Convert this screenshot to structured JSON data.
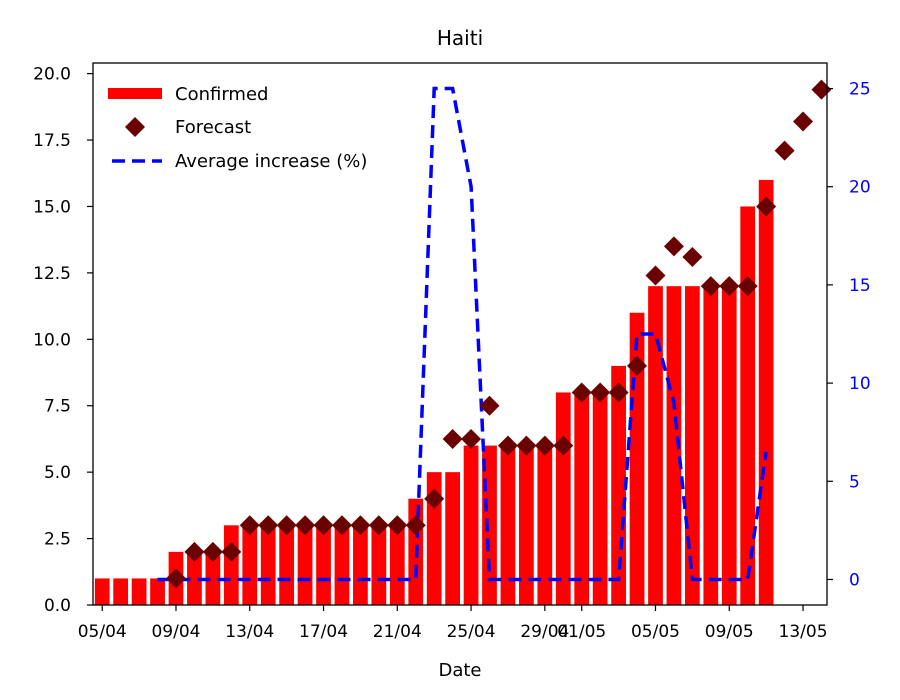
{
  "chart_data": {
    "type": "bar",
    "title": "Haiti",
    "xlabel": "Date",
    "ylabel": "",
    "ylim": [
      0,
      20.4
    ],
    "y2lim": [
      -1.3,
      26.3
    ],
    "x_ticks": [
      "05/04",
      "09/04",
      "13/04",
      "17/04",
      "21/04",
      "25/04",
      "29/04",
      "01/05",
      "05/05",
      "09/05",
      "13/05"
    ],
    "y_ticks": [
      "0.0",
      "2.5",
      "5.0",
      "7.5",
      "10.0",
      "12.5",
      "15.0",
      "17.5",
      "20.0"
    ],
    "y2_ticks": [
      "0",
      "5",
      "10",
      "15",
      "20",
      "25"
    ],
    "legend": {
      "position": "top-left",
      "entries": {
        "confirmed": "Confirmed",
        "forecast": "Forecast",
        "avg": "Average increase (%)"
      }
    },
    "colors": {
      "confirmed": "#ff0000",
      "forecast": "#6b0000",
      "avg": "#0000ff"
    },
    "series": [
      {
        "name": "Confirmed",
        "kind": "bar",
        "x": [
          "05/04",
          "06/04",
          "07/04",
          "08/04",
          "09/04",
          "10/04",
          "11/04",
          "12/04",
          "13/04",
          "14/04",
          "15/04",
          "16/04",
          "17/04",
          "18/04",
          "19/04",
          "20/04",
          "21/04",
          "22/04",
          "23/04",
          "24/04",
          "25/04",
          "26/04",
          "27/04",
          "28/04",
          "29/04",
          "30/04",
          "01/05",
          "02/05",
          "03/05",
          "04/05",
          "05/05",
          "06/05",
          "07/05",
          "08/05",
          "09/05",
          "10/05",
          "11/05"
        ],
        "values": [
          1,
          1,
          1,
          1,
          2,
          2,
          2,
          3,
          3,
          3,
          3,
          3,
          3,
          3,
          3,
          3,
          3,
          4,
          5,
          5,
          6,
          6,
          6,
          6,
          6,
          8,
          8,
          8,
          9,
          11,
          12,
          12,
          12,
          12,
          12,
          15,
          16
        ]
      },
      {
        "name": "Forecast",
        "kind": "scatter",
        "x": [
          "09/04",
          "10/04",
          "11/04",
          "12/04",
          "13/04",
          "14/04",
          "15/04",
          "16/04",
          "17/04",
          "18/04",
          "19/04",
          "20/04",
          "21/04",
          "22/04",
          "23/04",
          "24/04",
          "25/04",
          "26/04",
          "27/04",
          "28/04",
          "29/04",
          "30/04",
          "01/05",
          "02/05",
          "03/05",
          "04/05",
          "05/05",
          "06/05",
          "07/05",
          "08/05",
          "09/05",
          "10/05",
          "11/05",
          "12/05",
          "13/05",
          "14/05"
        ],
        "values": [
          1.0,
          2.0,
          2.0,
          2.0,
          3.0,
          3.0,
          3.0,
          3.0,
          3.0,
          3.0,
          3.0,
          3.0,
          3.0,
          3.0,
          4.0,
          6.25,
          6.25,
          7.5,
          6.0,
          6.0,
          6.0,
          6.0,
          8.0,
          8.0,
          8.0,
          9.0,
          12.4,
          13.5,
          13.1,
          12.0,
          12.0,
          12.0,
          15.0,
          17.1,
          18.2,
          19.4
        ]
      },
      {
        "name": "Average increase (%)",
        "kind": "line",
        "axis": "right",
        "x": [
          "08/04",
          "09/04",
          "10/04",
          "11/04",
          "12/04",
          "13/04",
          "14/04",
          "15/04",
          "16/04",
          "17/04",
          "18/04",
          "19/04",
          "20/04",
          "21/04",
          "22/04",
          "23/04",
          "24/04",
          "25/04",
          "26/04",
          "27/04",
          "28/04",
          "29/04",
          "30/04",
          "01/05",
          "02/05",
          "03/05",
          "04/05",
          "05/05",
          "06/05",
          "07/05",
          "08/05",
          "09/05",
          "10/05",
          "11/05"
        ],
        "values": [
          0,
          0,
          0,
          0,
          0,
          0,
          0,
          0,
          0,
          0,
          0,
          0,
          0,
          0,
          0,
          25,
          25,
          20,
          0,
          0,
          0,
          0,
          0,
          0,
          0,
          0,
          12.5,
          12.5,
          9,
          0,
          0,
          0,
          0,
          6.5
        ]
      }
    ]
  }
}
